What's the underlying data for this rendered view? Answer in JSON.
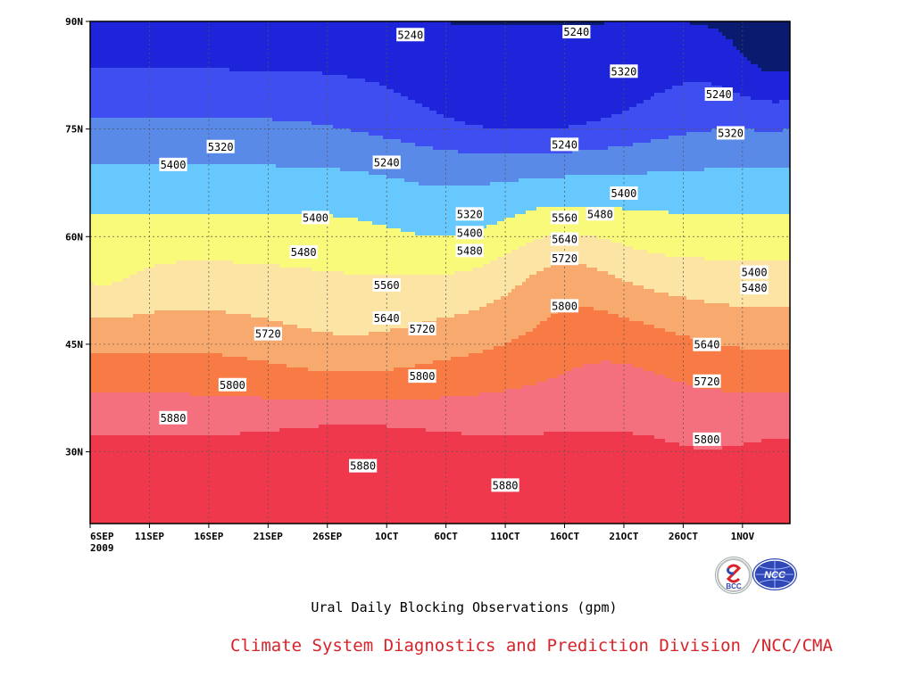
{
  "chart_data": {
    "type": "heatmap",
    "title": "Ural Daily Blocking Observations (gpm)",
    "source": "Climate System Diagnostics and Prediction Division /NCC/CMA",
    "x_ticks": [
      "6SEP",
      "11SEP",
      "16SEP",
      "21SEP",
      "26SEP",
      "1OCT",
      "6OCT",
      "11OCT",
      "16OCT",
      "21OCT",
      "26OCT",
      "1NOV"
    ],
    "year_label": "2009",
    "x_range": [
      "2009-09-06",
      "2009-11-04"
    ],
    "y_ticks": [
      "30N",
      "45N",
      "60N",
      "75N",
      "90N"
    ],
    "y_range": [
      20,
      90
    ],
    "contour_levels": [
      5160,
      5240,
      5320,
      5400,
      5480,
      5560,
      5640,
      5720,
      5800,
      5880
    ],
    "level_colors": [
      "#0a1a6e",
      "#1d24d9",
      "#3f4ef0",
      "#5a8ae8",
      "#66c8fc",
      "#fafa7a",
      "#fce4a5",
      "#f8a96d",
      "#f87b45",
      "#f4707e",
      "#f0384d"
    ],
    "grid": true,
    "contour_labels": [
      {
        "value": "5240",
        "date": "2009-10-03",
        "lat": 88.1
      },
      {
        "value": "5240",
        "date": "2009-10-17",
        "lat": 88.5
      },
      {
        "value": "5320",
        "date": "2009-10-21",
        "lat": 83.0
      },
      {
        "value": "5240",
        "date": "2009-10-29",
        "lat": 79.8
      },
      {
        "value": "5320",
        "date": "2009-09-17",
        "lat": 72.5
      },
      {
        "value": "5320",
        "date": "2009-10-30",
        "lat": 74.4
      },
      {
        "value": "5240",
        "date": "2009-10-16",
        "lat": 72.8
      },
      {
        "value": "5400",
        "date": "2009-09-13",
        "lat": 70.0
      },
      {
        "value": "5240",
        "date": "2009-10-01",
        "lat": 70.3
      },
      {
        "value": "5400",
        "date": "2009-10-21",
        "lat": 66.0
      },
      {
        "value": "5400",
        "date": "2009-09-25",
        "lat": 62.6
      },
      {
        "value": "5320",
        "date": "2009-10-08",
        "lat": 63.1
      },
      {
        "value": "5560",
        "date": "2009-10-16",
        "lat": 62.6
      },
      {
        "value": "5480",
        "date": "2009-10-19",
        "lat": 63.1
      },
      {
        "value": "5400",
        "date": "2009-10-08",
        "lat": 60.5
      },
      {
        "value": "5640",
        "date": "2009-10-16",
        "lat": 59.6
      },
      {
        "value": "5480",
        "date": "2009-09-24",
        "lat": 57.8
      },
      {
        "value": "5480",
        "date": "2009-10-08",
        "lat": 58.0
      },
      {
        "value": "5720",
        "date": "2009-10-16",
        "lat": 56.9
      },
      {
        "value": "5400",
        "date": "2009-11-01",
        "lat": 55.0
      },
      {
        "value": "5560",
        "date": "2009-10-01",
        "lat": 53.2
      },
      {
        "value": "5480",
        "date": "2009-11-01",
        "lat": 52.8
      },
      {
        "value": "5800",
        "date": "2009-10-16",
        "lat": 50.3
      },
      {
        "value": "5640",
        "date": "2009-10-01",
        "lat": 48.6
      },
      {
        "value": "5720",
        "date": "2009-10-04",
        "lat": 47.1
      },
      {
        "value": "5720",
        "date": "2009-09-21",
        "lat": 46.4
      },
      {
        "value": "5640",
        "date": "2009-10-28",
        "lat": 44.9
      },
      {
        "value": "5800",
        "date": "2009-10-04",
        "lat": 40.5
      },
      {
        "value": "5720",
        "date": "2009-10-28",
        "lat": 39.8
      },
      {
        "value": "5800",
        "date": "2009-09-18",
        "lat": 39.3
      },
      {
        "value": "5880",
        "date": "2009-09-13",
        "lat": 34.7
      },
      {
        "value": "5800",
        "date": "2009-10-28",
        "lat": 31.7
      },
      {
        "value": "5880",
        "date": "2009-09-29",
        "lat": 28.0
      },
      {
        "value": "5880",
        "date": "2009-10-11",
        "lat": 25.3
      }
    ]
  },
  "logos": {
    "left": "BCC",
    "right": "NCC"
  }
}
